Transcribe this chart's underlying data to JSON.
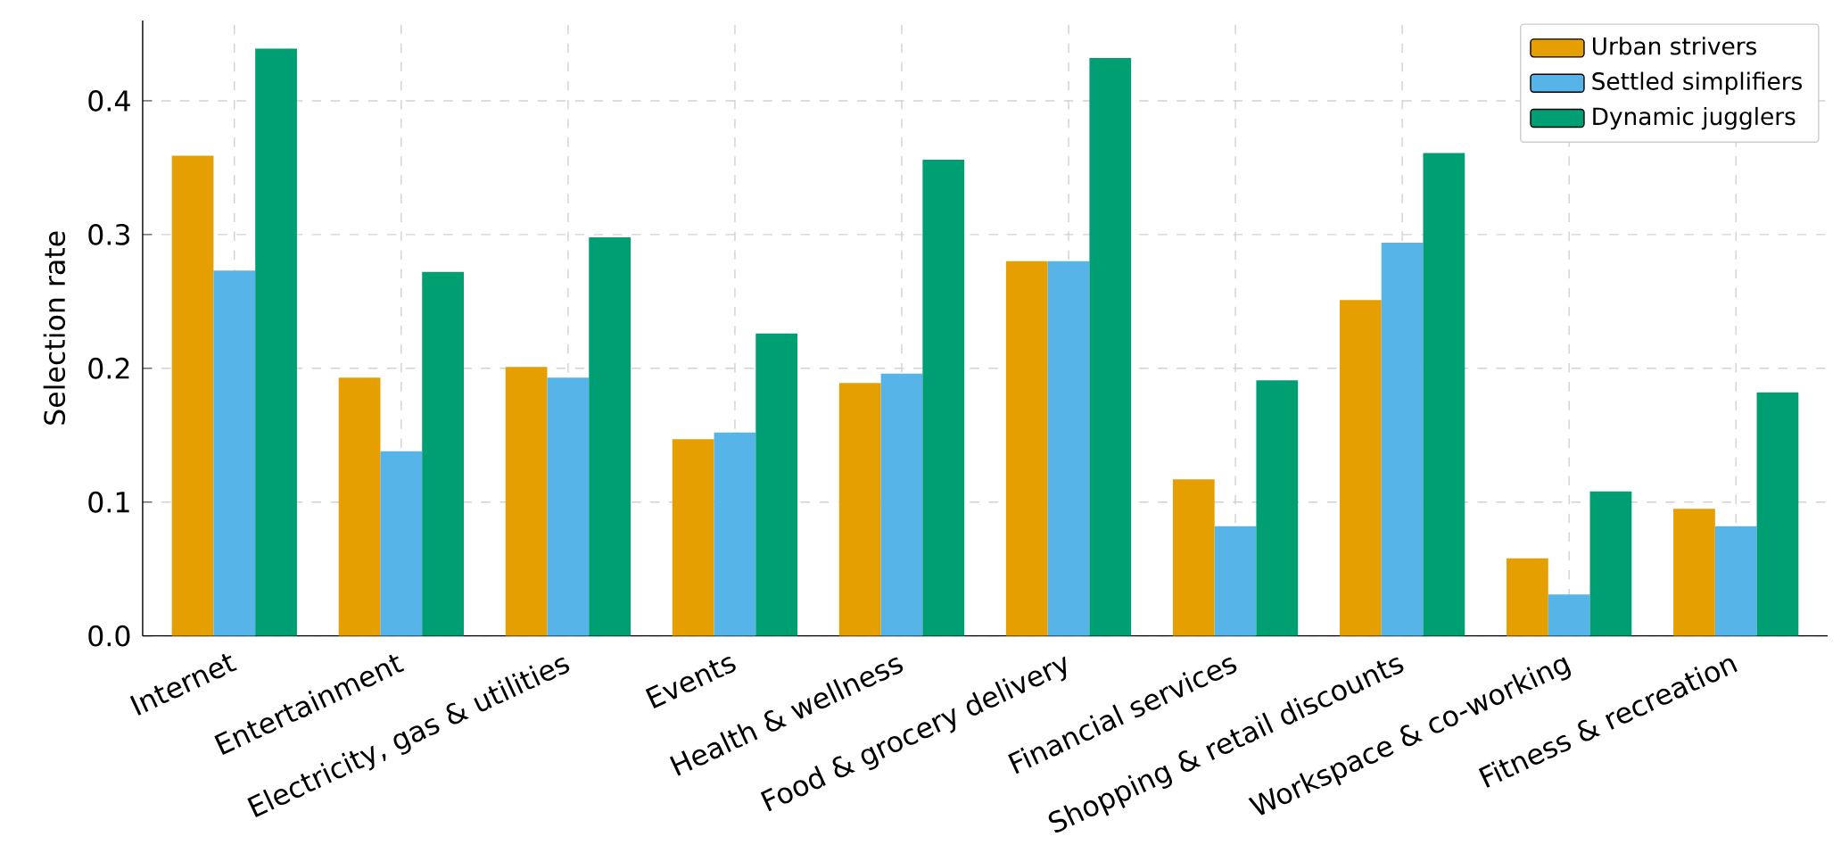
{
  "chart_data": {
    "type": "bar",
    "ylabel": "Selection rate",
    "categories": [
      "Internet",
      "Entertainment",
      "Electricity, gas & utilities",
      "Events",
      "Health & wellness",
      "Food & grocery delivery",
      "Financial services",
      "Shopping & retail discounts",
      "Workspace & co-working",
      "Fitness & recreation"
    ],
    "series": [
      {
        "name": "Urban strivers",
        "color": "#e69f00",
        "values": [
          0.359,
          0.193,
          0.201,
          0.147,
          0.189,
          0.28,
          0.117,
          0.251,
          0.058,
          0.095
        ]
      },
      {
        "name": "Settled simplifiers",
        "color": "#56b4e9",
        "values": [
          0.273,
          0.138,
          0.193,
          0.152,
          0.196,
          0.28,
          0.082,
          0.294,
          0.031,
          0.082
        ]
      },
      {
        "name": "Dynamic jugglers",
        "color": "#009e73",
        "values": [
          0.439,
          0.272,
          0.298,
          0.226,
          0.356,
          0.432,
          0.191,
          0.361,
          0.108,
          0.182
        ]
      }
    ],
    "ylim": [
      0,
      0.46
    ],
    "yticks": [
      {
        "value": 0,
        "label": "0.0"
      },
      0.1,
      0.2,
      0.3,
      0.4
    ],
    "grid": true,
    "legend": "top right"
  }
}
